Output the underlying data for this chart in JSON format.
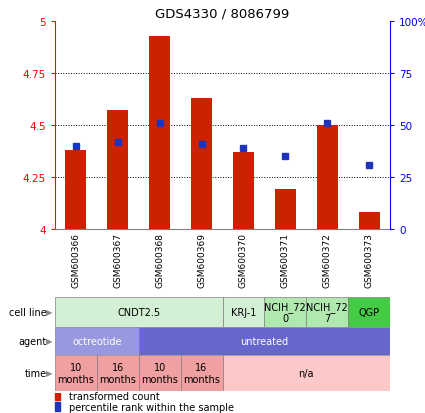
{
  "title": "GDS4330 / 8086799",
  "samples": [
    "GSM600366",
    "GSM600367",
    "GSM600368",
    "GSM600369",
    "GSM600370",
    "GSM600371",
    "GSM600372",
    "GSM600373"
  ],
  "bar_values": [
    4.38,
    4.57,
    4.93,
    4.63,
    4.37,
    4.19,
    4.5,
    4.08
  ],
  "blue_values": [
    4.4,
    4.42,
    4.51,
    4.41,
    4.39,
    4.35,
    4.51,
    4.31
  ],
  "bar_bottom": 4.0,
  "ylim": [
    4.0,
    5.0
  ],
  "left_yticks": [
    4.0,
    4.25,
    4.5,
    4.75,
    5.0
  ],
  "left_yticklabels": [
    "4",
    "4.25",
    "4.5",
    "4.75",
    "5"
  ],
  "right_yticks": [
    0,
    25,
    50,
    75,
    100
  ],
  "right_yticklabels": [
    "0",
    "25",
    "50",
    "75",
    "100%"
  ],
  "dotted_lines": [
    4.25,
    4.5,
    4.75
  ],
  "bar_color": "#cc2200",
  "blue_color": "#2233bb",
  "cell_line_data": [
    {
      "label": "CNDT2.5",
      "start": 0,
      "end": 3,
      "color": "#d4f0d4"
    },
    {
      "label": "KRJ-1",
      "start": 4,
      "end": 4,
      "color": "#d4f0d4"
    },
    {
      "label": "NCIH_72\n0",
      "start": 5,
      "end": 5,
      "color": "#b0e8b0"
    },
    {
      "label": "NCIH_72\n7",
      "start": 6,
      "end": 6,
      "color": "#b0e8b0"
    },
    {
      "label": "QGP",
      "start": 7,
      "end": 7,
      "color": "#44cc44"
    }
  ],
  "agent_data": [
    {
      "label": "octreotide",
      "start": 0,
      "end": 1,
      "color": "#9898e0"
    },
    {
      "label": "untreated",
      "start": 2,
      "end": 7,
      "color": "#6666cc"
    }
  ],
  "time_data": [
    {
      "label": "10\nmonths",
      "start": 0,
      "end": 0,
      "color": "#f0a0a0"
    },
    {
      "label": "16\nmonths",
      "start": 1,
      "end": 1,
      "color": "#f0a0a0"
    },
    {
      "label": "10\nmonths",
      "start": 2,
      "end": 2,
      "color": "#f0a0a0"
    },
    {
      "label": "16\nmonths",
      "start": 3,
      "end": 3,
      "color": "#f0a0a0"
    },
    {
      "label": "n/a",
      "start": 4,
      "end": 7,
      "color": "#fcc8c8"
    }
  ],
  "row_labels": [
    "cell line",
    "agent",
    "time"
  ],
  "legend_items": [
    {
      "label": "transformed count",
      "color": "#cc2200"
    },
    {
      "label": "percentile rank within the sample",
      "color": "#2233bb"
    }
  ]
}
